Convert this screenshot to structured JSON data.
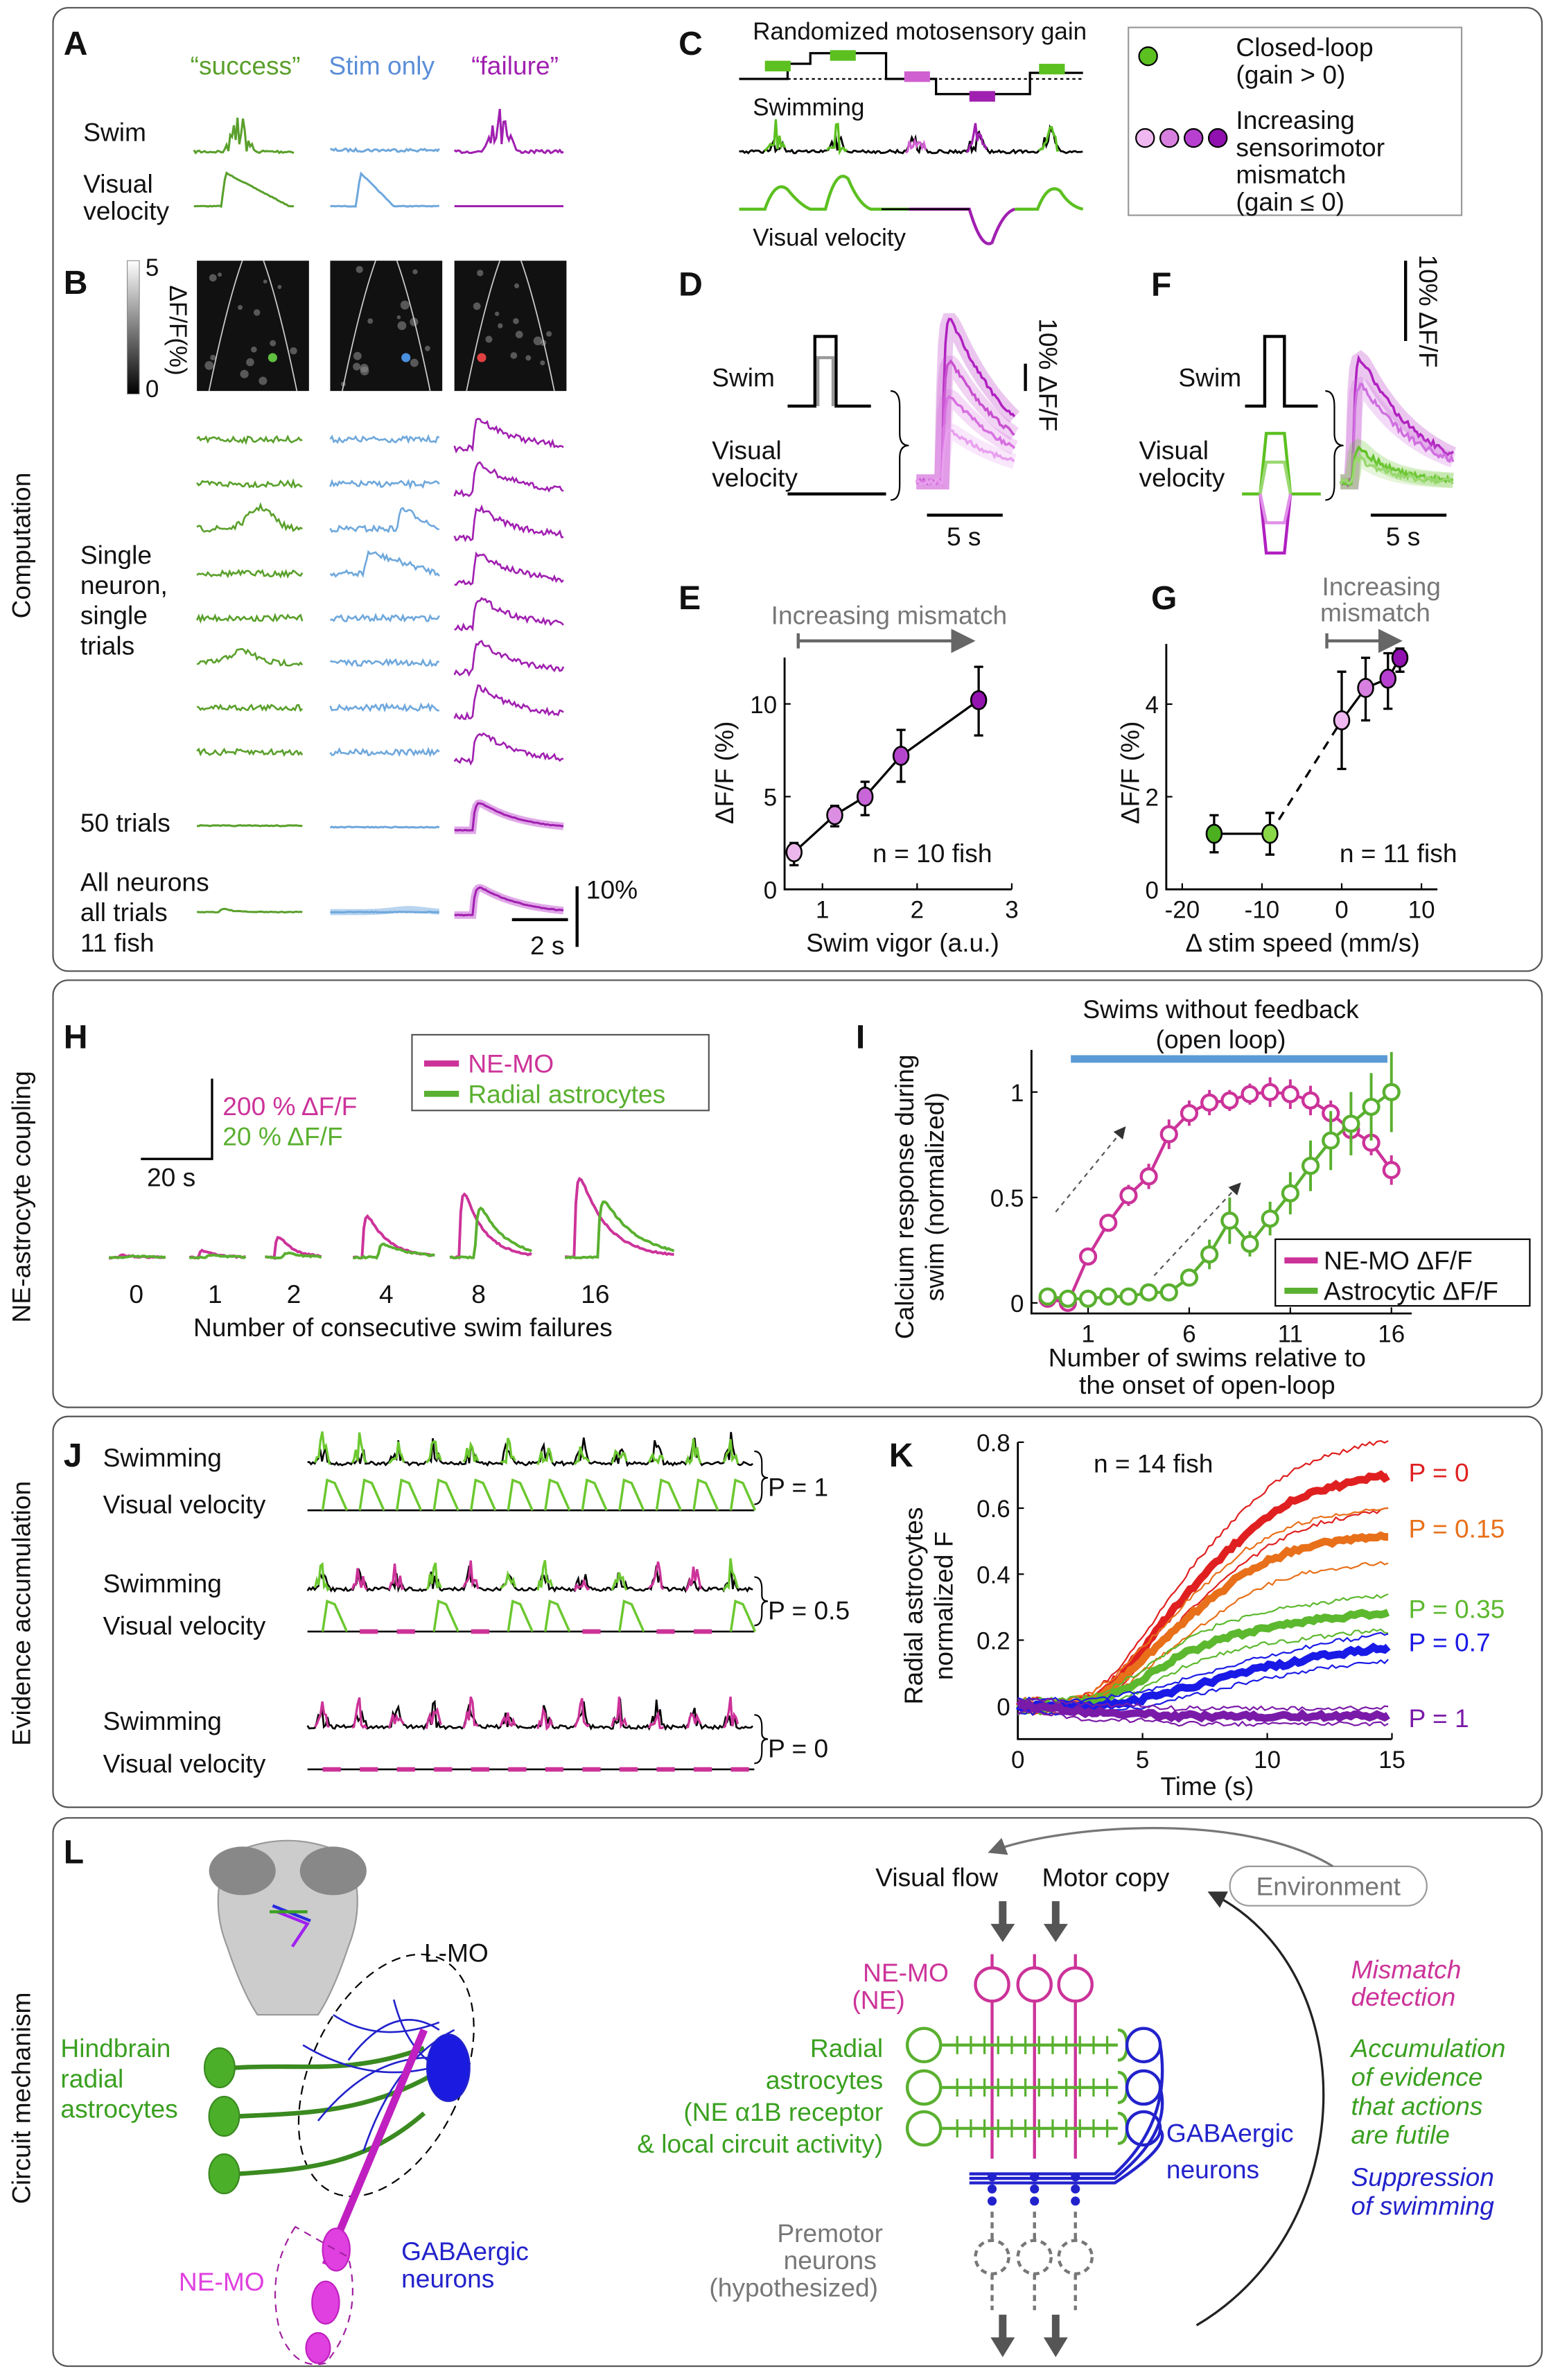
{
  "colors": {
    "success": "#5aa02c",
    "stim": "#6fa8dc",
    "failure": "#a020b0",
    "ne_mo": "#cc3399",
    "astro": "#5ab030",
    "gaba": "#2222cc",
    "grey": "#777777",
    "open_loop_bar": "#5b9bd5"
  },
  "sections": [
    "Computation",
    "NE-astrocyte coupling",
    "Evidence accumulation",
    "Circuit mechanism"
  ],
  "A": {
    "letter": "A",
    "cols": [
      "“success”",
      "Stim only",
      "“failure”"
    ],
    "rows": [
      "Swim"
    ],
    "vv": [
      "Visual",
      "velocity"
    ]
  },
  "B": {
    "letter": "B",
    "cbar_max": "5",
    "cbar_min": "0",
    "cbar_label": "ΔF/F(%)",
    "single": [
      "Single",
      "neuron,",
      "single",
      "trials"
    ],
    "fifty": "50 trials",
    "all": [
      "All neurons",
      "all trials",
      "11 fish"
    ],
    "scale_y": "10%",
    "scale_x": "2 s"
  },
  "C": {
    "letter": "C",
    "title": "Randomized motosensory gain",
    "swim": "Swimming",
    "vv": "Visual velocity",
    "legend_closed": [
      "Closed-loop",
      "(gain > 0)"
    ],
    "legend_mismatch": [
      "Increasing",
      "sensorimotor",
      "mismatch",
      "(gain ≤ 0)"
    ]
  },
  "D": {
    "letter": "D",
    "swim": "Swim",
    "vv": [
      "Visual",
      "velocity"
    ],
    "scale_y": "10% ΔF/F",
    "scale_x": "5 s"
  },
  "F": {
    "letter": "F",
    "swim": "Swim",
    "vv": [
      "Visual",
      "velocity"
    ],
    "scale_y": "10% ΔF/F",
    "scale_x": "5 s"
  },
  "E": {
    "letter": "E",
    "arrow_label": "Increasing mismatch",
    "n": "n = 10 fish"
  },
  "G": {
    "letter": "G",
    "arrow_label": [
      "Increasing",
      "mismatch"
    ],
    "n": "n = 11 fish"
  },
  "H": {
    "letter": "H",
    "scale_m": "200 % ΔF/F",
    "scale_g": "20 % ΔF/F",
    "scale_x": "20 s",
    "legend": [
      "NE-MO",
      "Radial astrocytes"
    ],
    "categories": [
      "0",
      "1",
      "2",
      "4",
      "8",
      "16"
    ],
    "xlabel": "Number of consecutive swim failures"
  },
  "I": {
    "letter": "I",
    "title": [
      "Swims without feedback",
      "(open loop)"
    ]
  },
  "J": {
    "letter": "J",
    "rows": [
      {
        "swim": "Swimming",
        "vv": "Visual velocity",
        "p": "P = 1"
      },
      {
        "swim": "Swimming",
        "vv": "Visual velocity",
        "p": "P = 0.5"
      },
      {
        "swim": "Swimming",
        "vv": "Visual velocity",
        "p": "P = 0"
      }
    ]
  },
  "K": {
    "letter": "K",
    "n": "n = 14 fish"
  },
  "L": {
    "letter": "L",
    "lmo": "L-MO",
    "hindbrain": [
      "Hindbrain",
      "radial",
      "astrocytes"
    ],
    "nemo": "NE-MO",
    "gaba_left": [
      "GABAergic",
      "neurons"
    ],
    "visual_flow": "Visual flow",
    "motor_copy": "Motor copy",
    "environment": "Environment",
    "nemo_ne": [
      "NE-MO",
      "(NE)"
    ],
    "radial": [
      "Radial",
      "astrocytes",
      "(NE α1B receptor",
      "& local circuit activity)"
    ],
    "gaba_right": [
      "GABAergic",
      "neurons"
    ],
    "premotor": [
      "Premotor",
      "neurons",
      "(hypothesized)"
    ],
    "mismatch": [
      "Mismatch",
      "detection"
    ],
    "accum": [
      "Accumulation",
      "of evidence",
      "that actions",
      "are futile"
    ],
    "suppress": [
      "Suppression",
      "of swimming"
    ]
  },
  "chart_data": [
    {
      "panel": "E",
      "type": "scatter",
      "xlabel": "Swim vigor (a.u.)",
      "ylabel": "ΔF/F (%)",
      "xlim": [
        0.6,
        3
      ],
      "ylim": [
        0,
        12.5
      ],
      "xticks": [
        "1",
        "2",
        "3"
      ],
      "yticks": [
        "0",
        "5",
        "10"
      ],
      "x": [
        0.7,
        1.13,
        1.45,
        1.83,
        2.65
      ],
      "y": [
        2.0,
        4.0,
        5.0,
        7.2,
        10.2
      ],
      "err_low": [
        1.3,
        3.4,
        4.0,
        5.8,
        8.3
      ],
      "err_high": [
        2.5,
        4.5,
        5.8,
        8.6,
        12.0
      ],
      "point_colors": [
        "#ecb8ec",
        "#dc8ee2",
        "#c866d8",
        "#b444cc",
        "#9414b0"
      ]
    },
    {
      "panel": "G",
      "type": "scatter",
      "xlabel": "Δ stim speed (mm/s)",
      "ylabel": "ΔF/F (%)",
      "xlim": [
        -22,
        12
      ],
      "ylim": [
        0,
        5.3
      ],
      "xticks": [
        "-20",
        "-10",
        "0",
        "10"
      ],
      "yticks": [
        "0",
        "2",
        "4"
      ],
      "x": [
        -16,
        -9,
        0,
        3,
        5.8,
        7.3
      ],
      "y": [
        1.2,
        1.2,
        3.65,
        4.35,
        4.55,
        5.0
      ],
      "err_low": [
        0.8,
        0.75,
        2.6,
        3.65,
        3.9,
        4.7
      ],
      "err_high": [
        1.6,
        1.65,
        4.7,
        5.0,
        5.1,
        5.2
      ],
      "point_colors": [
        "#4caf20",
        "#8ad848",
        "#f0b8f0",
        "#d880e0",
        "#b840d0",
        "#9010b0"
      ]
    },
    {
      "panel": "I",
      "type": "line",
      "xlabel": [
        "Number of swims relative to",
        "the onset of open-loop"
      ],
      "ylabel": [
        "Calcium response during",
        "swim (normalized)"
      ],
      "xlim": [
        -1.8,
        17
      ],
      "ylim": [
        -0.05,
        1.2
      ],
      "xticks": [
        "1",
        "6",
        "11",
        "16"
      ],
      "yticks": [
        "0",
        "0.5",
        "1"
      ],
      "x": [
        -1,
        0,
        1,
        2,
        3,
        4,
        5,
        6,
        7,
        8,
        9,
        10,
        11,
        12,
        13,
        14,
        15,
        16
      ],
      "series": [
        {
          "name": "NE-MO ΔF/F",
          "color": "#cc3399",
          "values": [
            0.02,
            0,
            0.22,
            0.38,
            0.51,
            0.6,
            0.8,
            0.9,
            0.95,
            0.96,
            0.99,
            1.0,
            0.99,
            0.96,
            0.9,
            0.82,
            0.76,
            0.63
          ],
          "err": [
            0.01,
            0.01,
            0.04,
            0.04,
            0.05,
            0.06,
            0.07,
            0.06,
            0.06,
            0.05,
            0.05,
            0.07,
            0.07,
            0.07,
            0.06,
            0.06,
            0.06,
            0.07
          ]
        },
        {
          "name": "Astrocytic ΔF/F",
          "color": "#5ab030",
          "values": [
            0.03,
            0.02,
            0.02,
            0.03,
            0.03,
            0.05,
            0.05,
            0.12,
            0.23,
            0.39,
            0.28,
            0.4,
            0.52,
            0.65,
            0.77,
            0.85,
            0.93,
            1.0
          ],
          "err": [
            0.01,
            0.01,
            0.01,
            0.01,
            0.01,
            0.02,
            0.02,
            0.03,
            0.07,
            0.11,
            0.06,
            0.08,
            0.1,
            0.12,
            0.14,
            0.15,
            0.16,
            0.19
          ]
        }
      ],
      "legend": "bottom-right"
    },
    {
      "panel": "K",
      "type": "line",
      "xlabel": "Time (s)",
      "ylabel": [
        "Radial astrocytes",
        "normalized F"
      ],
      "xlim": [
        0,
        15
      ],
      "ylim": [
        -0.1,
        0.8
      ],
      "xticks": [
        "0",
        "5",
        "10",
        "15"
      ],
      "yticks": [
        "0",
        "0.2",
        "0.4",
        "0.6",
        "0.8"
      ],
      "x": [
        0,
        1,
        2,
        3,
        4,
        5,
        6,
        7,
        8,
        9,
        10,
        11,
        12,
        13,
        14,
        15
      ],
      "series": [
        {
          "name": "P = 0",
          "color": "#e02020",
          "values": [
            0,
            0,
            0,
            0.02,
            0.08,
            0.17,
            0.27,
            0.36,
            0.44,
            0.51,
            0.57,
            0.62,
            0.65,
            0.67,
            0.69,
            0.7
          ]
        },
        {
          "name": "P = 0.15",
          "color": "#e8701a",
          "values": [
            0,
            0,
            0,
            0.02,
            0.07,
            0.14,
            0.21,
            0.28,
            0.34,
            0.4,
            0.44,
            0.47,
            0.49,
            0.5,
            0.51,
            0.52
          ]
        },
        {
          "name": "P = 0.35",
          "color": "#5cb82e",
          "values": [
            0,
            0,
            0,
            0.01,
            0.04,
            0.08,
            0.13,
            0.17,
            0.2,
            0.22,
            0.24,
            0.25,
            0.26,
            0.27,
            0.28,
            0.28
          ]
        },
        {
          "name": "P = 0.7",
          "color": "#1a1ae6",
          "values": [
            0,
            0,
            0,
            0,
            0.01,
            0.02,
            0.04,
            0.06,
            0.08,
            0.1,
            0.12,
            0.13,
            0.15,
            0.16,
            0.17,
            0.18
          ]
        },
        {
          "name": "P = 1",
          "color": "#7a1aa8",
          "values": [
            0,
            0,
            -0.01,
            -0.02,
            -0.02,
            -0.02,
            -0.03,
            -0.03,
            -0.03,
            -0.03,
            -0.03,
            -0.03,
            -0.03,
            -0.03,
            -0.03,
            -0.03
          ]
        }
      ],
      "legend": "right"
    }
  ]
}
